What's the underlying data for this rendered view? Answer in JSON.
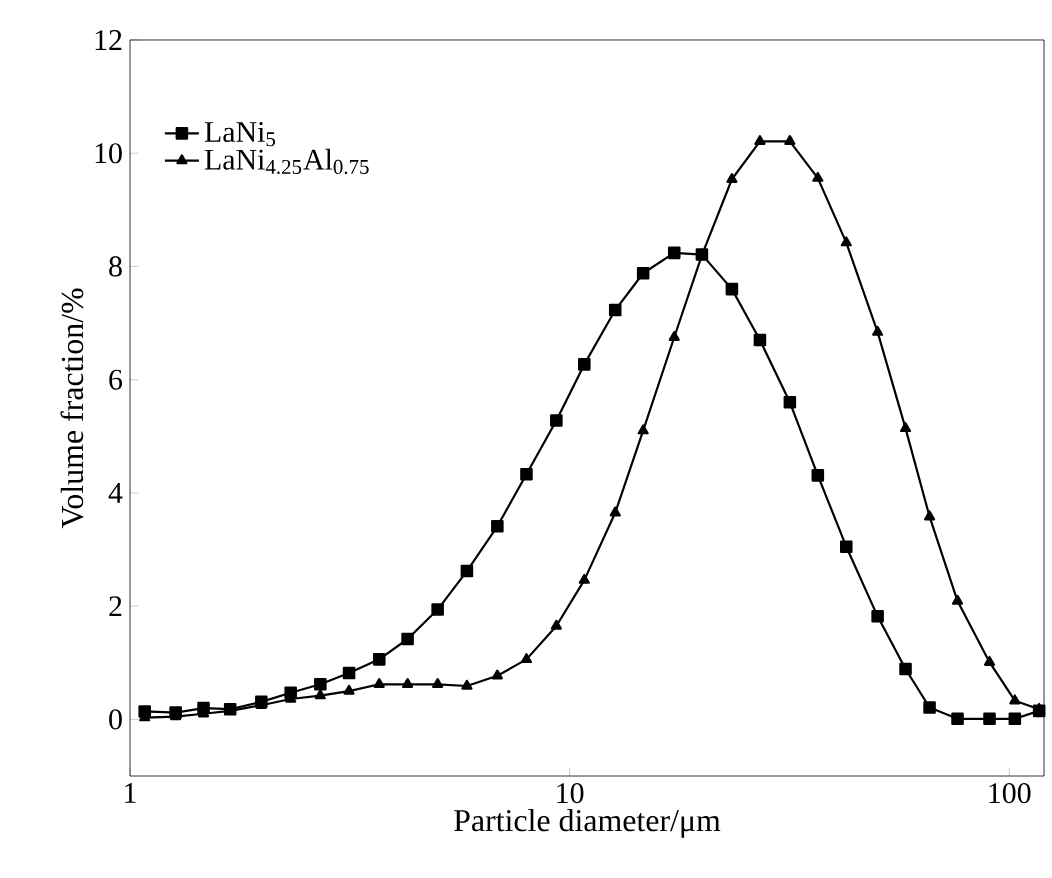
{
  "chart_data": {
    "type": "line",
    "xlabel": "Particle diameter/μm",
    "ylabel": "Volume fraction/%",
    "xlim": [
      1,
      120
    ],
    "ylim": [
      -1,
      12
    ],
    "xticks": [
      1,
      10,
      100
    ],
    "yticks": [
      0,
      2,
      4,
      6,
      8,
      10,
      12
    ],
    "log": "x",
    "legend": "top left",
    "line_style": "solid",
    "series": [
      {
        "name": "LaNi$_{5}$",
        "color": "#000000",
        "marker": "square",
        "x": [
          1.08,
          1.27,
          1.47,
          1.69,
          1.99,
          2.32,
          2.71,
          3.15,
          3.69,
          4.28,
          5.01,
          5.84,
          6.85,
          7.98,
          9.33,
          10.8,
          12.7,
          14.7,
          17.3,
          20.0,
          23.4,
          27.1,
          31.7,
          36.7,
          42.6,
          50.2,
          58.1,
          65.9,
          76.3,
          90.2,
          103,
          117
        ],
        "values": [
          0.14,
          0.12,
          0.2,
          0.18,
          0.31,
          0.47,
          0.62,
          0.82,
          1.06,
          1.42,
          1.94,
          2.62,
          3.41,
          4.33,
          5.28,
          6.27,
          7.23,
          7.88,
          8.24,
          8.21,
          7.6,
          6.7,
          5.6,
          4.31,
          3.05,
          1.82,
          0.89,
          0.21,
          0.01,
          0.01,
          0.01,
          0.15
        ]
      },
      {
        "name": "LaNi$_{4.25}$Al$_{0.75}$",
        "color": "#000000",
        "marker": "triangle",
        "x": [
          1.08,
          1.27,
          1.47,
          1.69,
          1.99,
          2.32,
          2.71,
          3.15,
          3.69,
          4.28,
          5.01,
          5.84,
          6.85,
          7.98,
          9.33,
          10.8,
          12.7,
          14.7,
          17.3,
          20.0,
          23.4,
          27.1,
          31.7,
          36.7,
          42.6,
          50.2,
          58.1,
          65.9,
          76.3,
          90.2,
          103,
          117
        ],
        "values": [
          0.03,
          0.05,
          0.1,
          0.15,
          0.25,
          0.36,
          0.42,
          0.5,
          0.62,
          0.62,
          0.62,
          0.59,
          0.77,
          1.06,
          1.65,
          2.46,
          3.65,
          5.1,
          6.75,
          8.2,
          9.54,
          10.21,
          10.21,
          9.56,
          8.42,
          6.84,
          5.14,
          3.58,
          2.09,
          1.01,
          0.33,
          0.18
        ]
      }
    ]
  }
}
